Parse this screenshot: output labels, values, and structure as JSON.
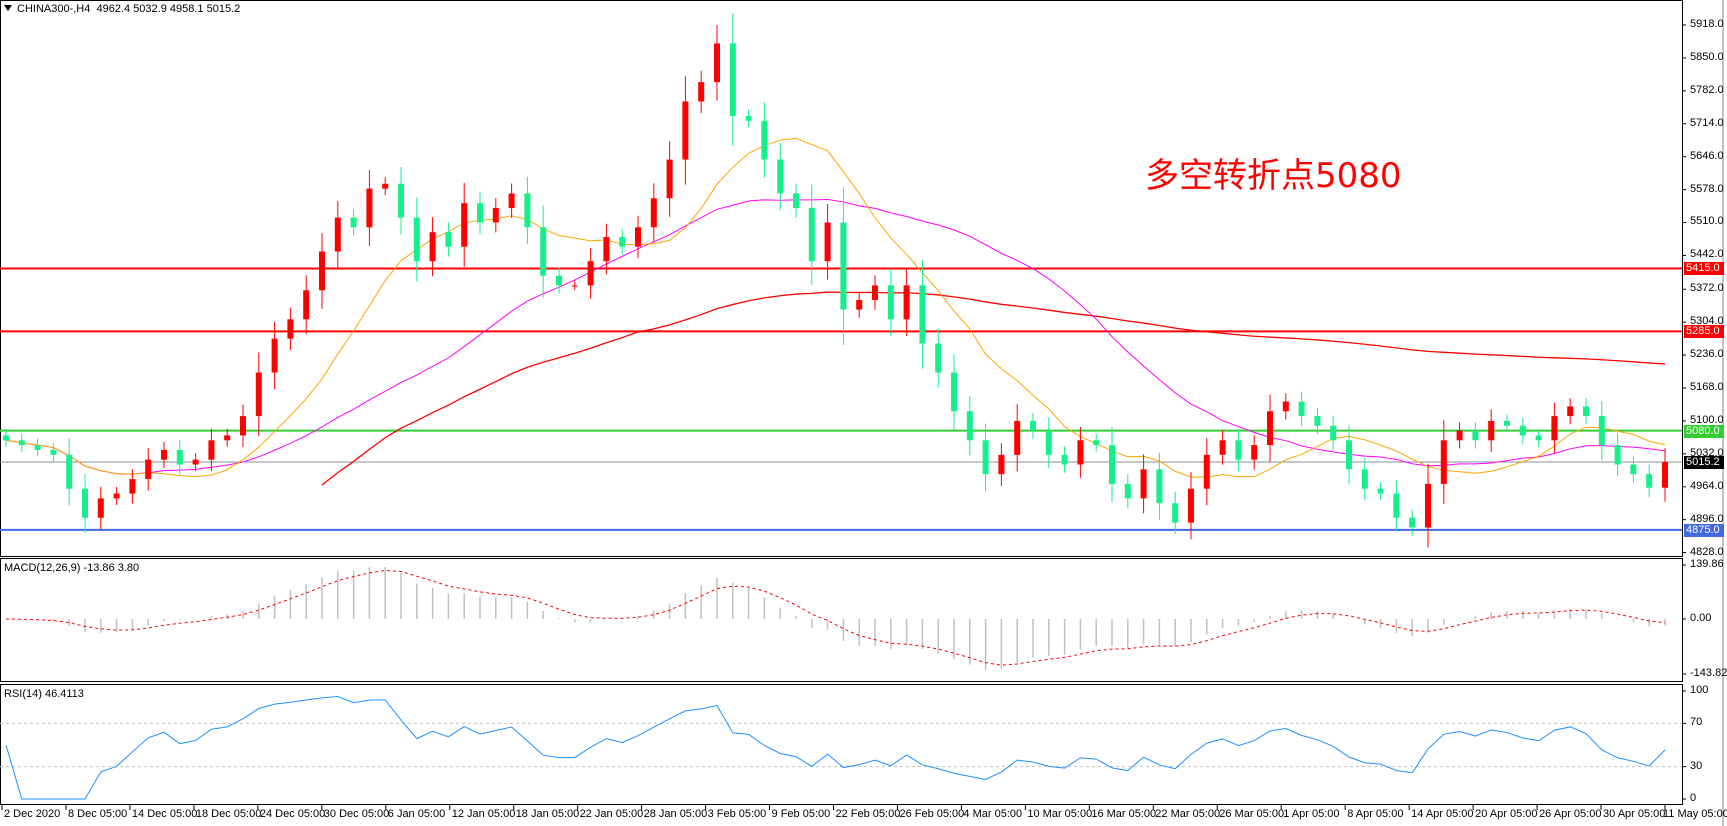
{
  "header": {
    "symbol": "CHINA300-,H4",
    "ohlc": "4962.4 5032.9 4958.1 5015.2"
  },
  "annotation": "多空转折点5080",
  "colors": {
    "bull": "#ff0000",
    "bear": "#16f08c",
    "ma_fast": "#ffa500",
    "ma_mid": "#ff00ff",
    "ma_slow": "#ff0000",
    "rsi": "#1e90ff",
    "macd_hist": "#c0c0c0",
    "macd_signal": "#ff0000"
  },
  "levels": [
    {
      "value": "5415.0",
      "color": "#ff0000"
    },
    {
      "value": "5285.0",
      "color": "#ff0000"
    },
    {
      "value": "5080.0",
      "color": "#32cd32"
    },
    {
      "value": "5015.2",
      "color": "#000000",
      "line": "#8a8f99"
    },
    {
      "value": "4875.0",
      "color": "#4169e1"
    }
  ],
  "price_ticks": [
    "5918.0",
    "5850.0",
    "5782.0",
    "5714.0",
    "5646.0",
    "5578.0",
    "5510.0",
    "5442.0",
    "5372.0",
    "5304.0",
    "5236.0",
    "5168.0",
    "5100.0",
    "5032.0",
    "4964.0",
    "4896.0",
    "4828.0"
  ],
  "macd": {
    "label": "MACD(12,26,9) -13.86 3.80",
    "ticks": [
      "139.86",
      "0.00",
      "-143.82"
    ]
  },
  "rsi": {
    "label": "RSI(14) 46.4113",
    "ticks": [
      "100",
      "70",
      "30",
      "0"
    ]
  },
  "time_ticks": [
    "2 Dec 2020",
    "8 Dec 05:00",
    "14 Dec 05:00",
    "18 Dec 05:00",
    "24 Dec 05:00",
    "30 Dec 05:00",
    "6 Jan 05:00",
    "12 Jan 05:00",
    "18 Jan 05:00",
    "22 Jan 05:00",
    "28 Jan 05:00",
    "3 Feb 05:00",
    "9 Feb 05:00",
    "22 Feb 05:00",
    "26 Feb 05:00",
    "4 Mar 05:00",
    "10 Mar 05:00",
    "16 Mar 05:00",
    "22 Mar 05:00",
    "26 Mar 05:00",
    "1 Apr 05:00",
    "8 Apr 05:00",
    "14 Apr 05:00",
    "20 Apr 05:00",
    "26 Apr 05:00",
    "30 Apr 05:00",
    "11 May 05:00"
  ],
  "chart_data": {
    "type": "candlestick",
    "price_range": [
      4828,
      5918
    ],
    "closes": [
      5060,
      5050,
      5040,
      5030,
      4960,
      4900,
      4940,
      4950,
      4980,
      5020,
      5040,
      5010,
      5020,
      5060,
      5070,
      5110,
      5200,
      5270,
      5310,
      5370,
      5450,
      5520,
      5500,
      5580,
      5590,
      5520,
      5430,
      5490,
      5460,
      5550,
      5510,
      5540,
      5570,
      5500,
      5400,
      5380,
      5380,
      5430,
      5480,
      5460,
      5500,
      5560,
      5640,
      5760,
      5800,
      5880,
      5730,
      5720,
      5640,
      5570,
      5540,
      5430,
      5510,
      5330,
      5350,
      5380,
      5310,
      5380,
      5260,
      5200,
      5120,
      5060,
      4990,
      5030,
      5100,
      5080,
      5030,
      5010,
      5060,
      5050,
      4970,
      4940,
      5000,
      4930,
      4890,
      4960,
      5030,
      5060,
      5020,
      5050,
      5120,
      5140,
      5110,
      5090,
      5060,
      5000,
      4960,
      4950,
      4900,
      4880,
      4970,
      5060,
      5080,
      5060,
      5100,
      5090,
      5070,
      5060,
      5110,
      5130,
      5110,
      5050,
      5010,
      4990,
      4962,
      5015.2
    ]
  }
}
